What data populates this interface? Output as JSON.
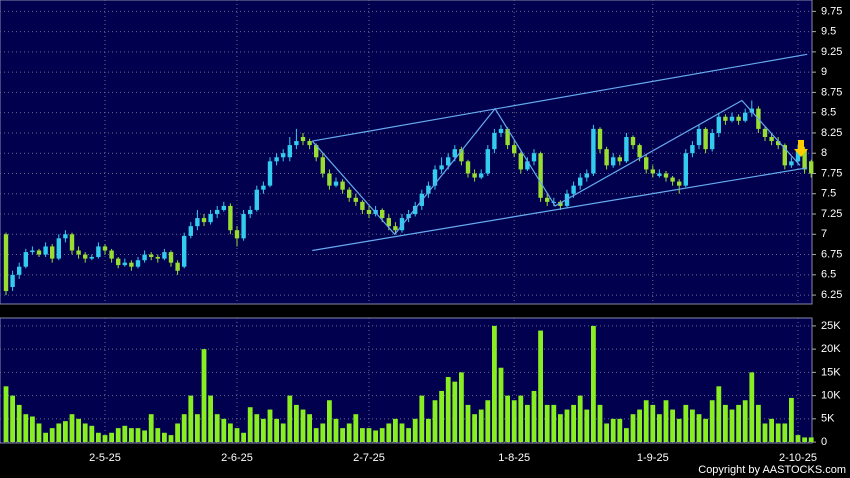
{
  "chart_data": {
    "type": "candlestick",
    "categories": [
      null,
      null,
      null,
      null,
      null,
      null,
      null,
      null,
      null,
      null,
      null,
      null,
      null,
      null,
      null,
      "2-5-25",
      null,
      null,
      null,
      null,
      null,
      null,
      null,
      null,
      null,
      null,
      null,
      null,
      null,
      null,
      null,
      null,
      null,
      null,
      null,
      "2-6-25",
      null,
      null,
      null,
      null,
      null,
      null,
      null,
      null,
      null,
      null,
      null,
      null,
      null,
      null,
      null,
      null,
      null,
      null,
      null,
      "2-7-25",
      null,
      null,
      null,
      null,
      null,
      null,
      null,
      null,
      null,
      null,
      null,
      null,
      null,
      null,
      null,
      null,
      null,
      null,
      null,
      null,
      null,
      "1-8-25",
      null,
      null,
      null,
      null,
      null,
      null,
      null,
      null,
      null,
      null,
      null,
      null,
      null,
      null,
      null,
      null,
      null,
      null,
      null,
      null,
      "1-9-25",
      null,
      null,
      null,
      null,
      null,
      null,
      null,
      null,
      null,
      null,
      null,
      null,
      null,
      null,
      null,
      null,
      null,
      null,
      null,
      null,
      null,
      "2-10-25",
      null,
      null
    ],
    "candles": [
      [
        7.0,
        7.02,
        6.25,
        6.3
      ],
      [
        6.35,
        6.55,
        6.3,
        6.5
      ],
      [
        6.5,
        6.65,
        6.45,
        6.6
      ],
      [
        6.6,
        6.82,
        6.58,
        6.78
      ],
      [
        6.78,
        6.85,
        6.75,
        6.8
      ],
      [
        6.8,
        6.82,
        6.72,
        6.75
      ],
      [
        6.75,
        6.9,
        6.72,
        6.85
      ],
      [
        6.85,
        6.88,
        6.65,
        6.7
      ],
      [
        6.7,
        7.0,
        6.68,
        6.95
      ],
      [
        6.95,
        7.05,
        6.9,
        7.0
      ],
      [
        7.0,
        7.02,
        6.75,
        6.8
      ],
      [
        6.8,
        6.85,
        6.7,
        6.75
      ],
      [
        6.75,
        6.78,
        6.65,
        6.7
      ],
      [
        6.7,
        6.75,
        6.68,
        6.72
      ],
      [
        6.72,
        6.9,
        6.7,
        6.85
      ],
      [
        6.85,
        6.88,
        6.75,
        6.8
      ],
      [
        6.8,
        6.82,
        6.65,
        6.7
      ],
      [
        6.7,
        6.72,
        6.58,
        6.62
      ],
      [
        6.62,
        6.7,
        6.6,
        6.65
      ],
      [
        6.65,
        6.68,
        6.55,
        6.6
      ],
      [
        6.6,
        6.72,
        6.58,
        6.68
      ],
      [
        6.68,
        6.8,
        6.65,
        6.75
      ],
      [
        6.75,
        6.78,
        6.68,
        6.72
      ],
      [
        6.72,
        6.75,
        6.65,
        6.7
      ],
      [
        6.7,
        6.82,
        6.68,
        6.78
      ],
      [
        6.78,
        6.8,
        6.6,
        6.65
      ],
      [
        6.65,
        6.68,
        6.5,
        6.55
      ],
      [
        6.6,
        7.02,
        6.58,
        6.98
      ],
      [
        6.98,
        7.15,
        6.95,
        7.1
      ],
      [
        7.1,
        7.3,
        7.05,
        7.2
      ],
      [
        7.2,
        7.25,
        7.1,
        7.15
      ],
      [
        7.15,
        7.3,
        7.12,
        7.25
      ],
      [
        7.25,
        7.35,
        7.2,
        7.3
      ],
      [
        7.3,
        7.4,
        7.28,
        7.35
      ],
      [
        7.35,
        7.38,
        7.0,
        7.05
      ],
      [
        7.05,
        7.1,
        6.85,
        6.95
      ],
      [
        6.95,
        7.3,
        6.92,
        7.25
      ],
      [
        7.25,
        7.35,
        7.2,
        7.3
      ],
      [
        7.3,
        7.6,
        7.28,
        7.55
      ],
      [
        7.55,
        7.65,
        7.5,
        7.6
      ],
      [
        7.6,
        7.95,
        7.58,
        7.9
      ],
      [
        7.9,
        8.0,
        7.85,
        7.95
      ],
      [
        7.95,
        8.05,
        7.9,
        8.0
      ],
      [
        7.95,
        8.2,
        7.9,
        8.1
      ],
      [
        8.1,
        8.3,
        8.05,
        8.15
      ],
      [
        8.2,
        8.25,
        8.1,
        8.15
      ],
      [
        8.15,
        8.18,
        8.05,
        8.1
      ],
      [
        8.1,
        8.12,
        7.9,
        7.95
      ],
      [
        7.95,
        8.0,
        7.7,
        7.75
      ],
      [
        7.75,
        7.8,
        7.55,
        7.6
      ],
      [
        7.6,
        7.7,
        7.58,
        7.65
      ],
      [
        7.65,
        7.68,
        7.5,
        7.55
      ],
      [
        7.55,
        7.58,
        7.4,
        7.45
      ],
      [
        7.45,
        7.5,
        7.35,
        7.4
      ],
      [
        7.4,
        7.42,
        7.25,
        7.3
      ],
      [
        7.3,
        7.35,
        7.2,
        7.25
      ],
      [
        7.25,
        7.35,
        7.22,
        7.3
      ],
      [
        7.3,
        7.32,
        7.15,
        7.2
      ],
      [
        7.2,
        7.25,
        7.05,
        7.1
      ],
      [
        7.1,
        7.15,
        7.0,
        7.05
      ],
      [
        7.05,
        7.25,
        7.02,
        7.2
      ],
      [
        7.2,
        7.3,
        7.15,
        7.25
      ],
      [
        7.25,
        7.4,
        7.22,
        7.35
      ],
      [
        7.35,
        7.55,
        7.3,
        7.5
      ],
      [
        7.5,
        7.65,
        7.45,
        7.6
      ],
      [
        7.6,
        7.85,
        7.55,
        7.8
      ],
      [
        7.8,
        7.95,
        7.75,
        7.85
      ],
      [
        7.85,
        8.0,
        7.8,
        7.95
      ],
      [
        7.95,
        8.1,
        7.9,
        8.05
      ],
      [
        8.05,
        8.08,
        7.85,
        7.9
      ],
      [
        7.9,
        7.92,
        7.7,
        7.75
      ],
      [
        7.75,
        7.8,
        7.65,
        7.7
      ],
      [
        7.7,
        7.8,
        7.68,
        7.75
      ],
      [
        7.75,
        8.1,
        7.72,
        8.05
      ],
      [
        8.05,
        8.3,
        8.0,
        8.25
      ],
      [
        8.25,
        8.35,
        8.2,
        8.3
      ],
      [
        8.3,
        8.32,
        8.05,
        8.1
      ],
      [
        8.1,
        8.15,
        7.95,
        8.0
      ],
      [
        8.0,
        8.02,
        7.75,
        7.8
      ],
      [
        7.8,
        7.95,
        7.78,
        7.9
      ],
      [
        7.9,
        8.05,
        7.85,
        8.0
      ],
      [
        8.0,
        8.02,
        7.4,
        7.45
      ],
      [
        7.45,
        7.5,
        7.35,
        7.4
      ],
      [
        7.4,
        7.45,
        7.35,
        7.4
      ],
      [
        7.4,
        7.42,
        7.3,
        7.35
      ],
      [
        7.35,
        7.55,
        7.32,
        7.5
      ],
      [
        7.5,
        7.65,
        7.45,
        7.6
      ],
      [
        7.6,
        7.75,
        7.55,
        7.7
      ],
      [
        7.7,
        7.8,
        7.65,
        7.75
      ],
      [
        7.75,
        8.35,
        7.72,
        8.3
      ],
      [
        8.3,
        8.32,
        8.0,
        8.05
      ],
      [
        8.05,
        8.08,
        7.8,
        7.85
      ],
      [
        7.85,
        8.0,
        7.82,
        7.95
      ],
      [
        7.95,
        7.98,
        7.85,
        7.9
      ],
      [
        7.9,
        8.25,
        7.88,
        8.2
      ],
      [
        8.2,
        8.22,
        8.05,
        8.1
      ],
      [
        8.1,
        8.12,
        7.9,
        7.95
      ],
      [
        7.95,
        7.98,
        7.75,
        7.8
      ],
      [
        7.8,
        7.85,
        7.7,
        7.75
      ],
      [
        7.72,
        7.8,
        7.7,
        7.75
      ],
      [
        7.75,
        7.78,
        7.65,
        7.7
      ],
      [
        7.7,
        7.72,
        7.6,
        7.65
      ],
      [
        7.65,
        7.68,
        7.5,
        7.6
      ],
      [
        7.6,
        8.05,
        7.58,
        8.0
      ],
      [
        8.0,
        8.15,
        7.95,
        8.1
      ],
      [
        8.1,
        8.35,
        8.05,
        8.3
      ],
      [
        8.3,
        8.32,
        8.0,
        8.05
      ],
      [
        8.05,
        8.3,
        8.02,
        8.25
      ],
      [
        8.25,
        8.5,
        8.2,
        8.45
      ],
      [
        8.45,
        8.48,
        8.35,
        8.4
      ],
      [
        8.4,
        8.5,
        8.38,
        8.45
      ],
      [
        8.45,
        8.48,
        8.35,
        8.4
      ],
      [
        8.4,
        8.55,
        8.38,
        8.5
      ],
      [
        8.5,
        8.65,
        8.45,
        8.55
      ],
      [
        8.55,
        8.58,
        8.25,
        8.3
      ],
      [
        8.3,
        8.32,
        8.15,
        8.2
      ],
      [
        8.2,
        8.25,
        8.1,
        8.15
      ],
      [
        8.15,
        8.2,
        8.05,
        8.1
      ],
      [
        8.1,
        8.12,
        7.8,
        7.85
      ],
      [
        7.85,
        7.95,
        7.82,
        7.9
      ],
      [
        7.9,
        8.1,
        7.85,
        8.05
      ],
      [
        8.05,
        8.08,
        7.75,
        7.8
      ],
      [
        7.9,
        7.92,
        7.7,
        7.75
      ]
    ],
    "up_color": "#33ccee",
    "down_color": "#99dd33",
    "ylim": [
      6.14,
      9.89
    ],
    "yticks": [
      6.25,
      6.5,
      6.75,
      7,
      7.25,
      7.5,
      7.75,
      8,
      8.25,
      8.5,
      8.75,
      9,
      9.25,
      9.5,
      9.75
    ],
    "trend_color": "#66aaee",
    "lines": [
      {
        "points": [
          [
            46.4,
            8.15
          ],
          [
            121.4,
            9.22
          ]
        ]
      },
      {
        "points": [
          [
            46.4,
            6.8
          ],
          [
            121.4,
            7.82
          ]
        ]
      },
      {
        "points": [
          [
            46.4,
            8.15
          ],
          [
            58.9,
            7.0
          ],
          [
            74.1,
            8.55
          ],
          [
            83.2,
            7.35
          ],
          [
            111.5,
            8.65
          ],
          [
            120.3,
            7.85
          ]
        ]
      }
    ],
    "volume": {
      "color": "#88ee22",
      "values": [
        12000,
        10000,
        8000,
        6000,
        5500,
        4000,
        2000,
        3000,
        4000,
        4500,
        6000,
        5000,
        4000,
        3500,
        2000,
        1500,
        2000,
        3000,
        3500,
        3000,
        3000,
        2500,
        6000,
        3000,
        2000,
        1500,
        4000,
        6000,
        10000,
        6000,
        20000,
        10000,
        6000,
        5000,
        4000,
        3000,
        2000,
        7500,
        6000,
        5000,
        7000,
        5000,
        4000,
        10000,
        8000,
        7000,
        6000,
        3000,
        4000,
        9000,
        5000,
        3000,
        4000,
        6000,
        3000,
        3000,
        2500,
        3000,
        4000,
        5000,
        4000,
        3000,
        5000,
        10000,
        5000,
        9000,
        11000,
        14000,
        13000,
        15000,
        8000,
        6000,
        7000,
        9000,
        25000,
        16000,
        10000,
        9000,
        10000,
        8000,
        11000,
        24000,
        8000,
        8000,
        6000,
        7000,
        8000,
        10000,
        7000,
        25000,
        8000,
        4000,
        5000,
        5000,
        3000,
        6000,
        7000,
        9000,
        8000,
        6000,
        9000,
        7000,
        5000,
        8000,
        7000,
        6000,
        5000,
        9000,
        12000,
        8000,
        7000,
        8000,
        9000,
        15000,
        8000,
        4000,
        5000,
        4000,
        4000,
        9500,
        1500,
        1000,
        1000
      ],
      "ylim": [
        -200,
        26700
      ],
      "yticks": [
        0,
        {
          "value": 5000,
          "label": "5K"
        },
        {
          "value": 10000,
          "label": "10K"
        },
        {
          "value": 15000,
          "label": "15K"
        },
        {
          "value": 20000,
          "label": "20K"
        },
        {
          "value": 25000,
          "label": "25K"
        }
      ]
    },
    "grid": true,
    "copyright": "Copyright by AASTOCKS.com"
  }
}
